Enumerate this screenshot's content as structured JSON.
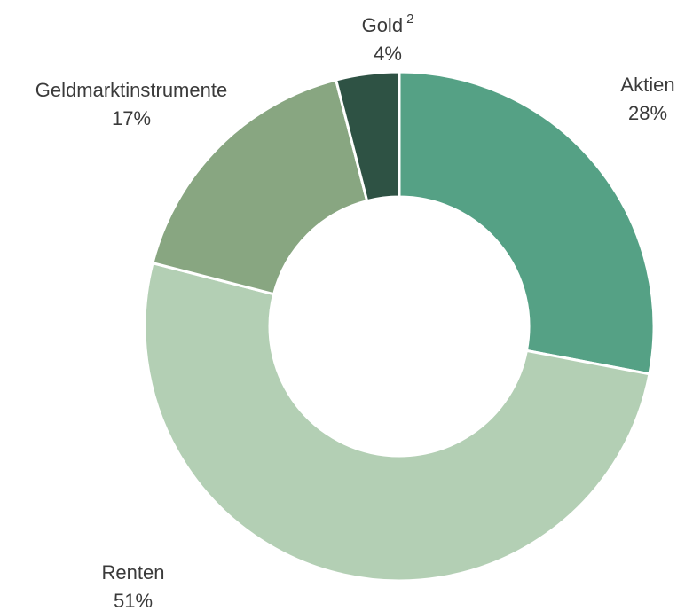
{
  "chart_data": {
    "type": "donut",
    "categories": [
      "Aktien",
      "Renten",
      "Geldmarktinstrumente",
      "Gold"
    ],
    "values": [
      28,
      51,
      17,
      4
    ],
    "value_labels": [
      "28%",
      "51%",
      "17%",
      "4%"
    ],
    "label_footnotes": [
      null,
      null,
      null,
      "2"
    ],
    "colors": [
      "#55a185",
      "#b3cfb4",
      "#88a681",
      "#2e5244"
    ]
  }
}
